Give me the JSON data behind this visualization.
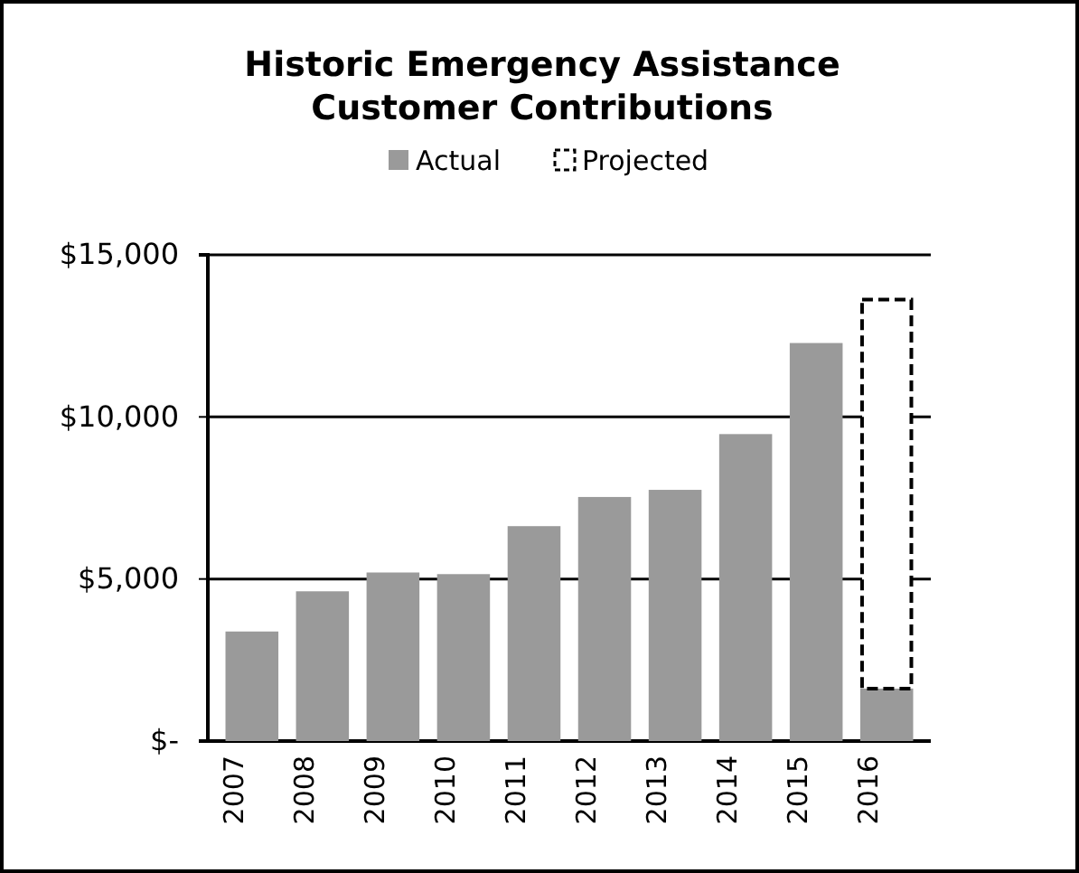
{
  "chart_data": {
    "type": "bar",
    "title": "Historic Emergency Assistance\nCustomer Contributions",
    "categories": [
      "2007",
      "2008",
      "2009",
      "2010",
      "2011",
      "2012",
      "2013",
      "2014",
      "2015",
      "2016"
    ],
    "stacked": true,
    "series": [
      {
        "name": "Actual",
        "color": "#9a9a9a",
        "values": [
          3380,
          4620,
          5200,
          5150,
          6630,
          7530,
          7750,
          9470,
          12280,
          1620
        ]
      },
      {
        "name": "Projected",
        "color": "#ffffff",
        "line_style": "dashed",
        "values": [
          null,
          null,
          null,
          null,
          null,
          null,
          null,
          null,
          null,
          12000
        ]
      }
    ],
    "ylim": [
      0,
      15000
    ],
    "yticks": [
      {
        "value": 0,
        "label": "$-"
      },
      {
        "value": 5000,
        "label": "$5,000"
      },
      {
        "value": 10000,
        "label": "$10,000"
      },
      {
        "value": 15000,
        "label": "$15,000"
      }
    ],
    "grid": "y",
    "legend": "top"
  }
}
